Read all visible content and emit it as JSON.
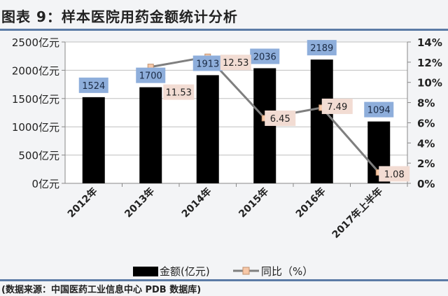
{
  "title": "图表 9：样本医院用药金额统计分析",
  "source": "(数据来源：中国医药工业信息中心 PDB 数据库)",
  "colors": {
    "bar": "#000000",
    "line": "#7f7f7f",
    "marker": "#f7c8a8",
    "bar_label_bg": "#8eaedb",
    "line_label_bg": "#f2dcd3",
    "rule": "#5b7ba6"
  },
  "chart_data": {
    "type": "bar+line",
    "categories": [
      "2012年",
      "2013年",
      "2014年",
      "2015年",
      "2016年",
      "2017年上半年"
    ],
    "series": [
      {
        "name": "金额(亿元)",
        "type": "bar",
        "axis": "left",
        "values": [
          1524,
          1700,
          1913,
          2036,
          2189,
          1094
        ],
        "labels": [
          "1524",
          "1700",
          "1913",
          "2036",
          "2189",
          "1094"
        ]
      },
      {
        "name": "同比（%）",
        "type": "line",
        "axis": "right",
        "values": [
          null,
          11.53,
          12.53,
          6.45,
          7.49,
          1.08
        ],
        "labels": [
          "",
          "11.53",
          "12.53",
          "6.45",
          "7.49",
          "1.08"
        ]
      }
    ],
    "left_axis": {
      "ylim": [
        0,
        2500
      ],
      "ticks": [
        "0亿元",
        "500亿元",
        "1000亿元",
        "1500亿元",
        "2000亿元",
        "2500亿元"
      ]
    },
    "right_axis": {
      "ylim": [
        0,
        14
      ],
      "ticks": [
        "0%",
        "2%",
        "4%",
        "6%",
        "8%",
        "10%",
        "12%",
        "14%"
      ]
    },
    "grid": "horizontal",
    "legend": "bottom"
  }
}
